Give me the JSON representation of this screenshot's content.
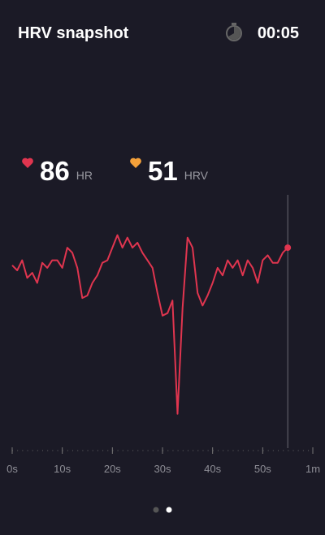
{
  "header": {
    "title": "HRV snapshot",
    "timer": "00:05"
  },
  "stats": [
    {
      "value": "86",
      "label": "HR",
      "color": "#e0354f"
    },
    {
      "value": "51",
      "label": "HRV",
      "color": "#f3a03a"
    }
  ],
  "chart_data": {
    "type": "line",
    "color": "#e0354f",
    "x": [
      0,
      1,
      2,
      3,
      4,
      5,
      6,
      7,
      8,
      9,
      10,
      11,
      12,
      13,
      14,
      15,
      16,
      17,
      18,
      19,
      20,
      21,
      22,
      23,
      24,
      25,
      26,
      27,
      28,
      29,
      30,
      31,
      32,
      33,
      34,
      35,
      36,
      37,
      38,
      39,
      40,
      41,
      42,
      43,
      44,
      45,
      46,
      47,
      48,
      49,
      50,
      51,
      52,
      53,
      54,
      55
    ],
    "values": [
      72,
      70,
      74,
      67,
      69,
      65,
      73,
      71,
      74,
      74,
      71,
      79,
      77,
      71,
      59,
      60,
      65,
      68,
      73,
      74,
      79,
      84,
      79,
      83,
      79,
      81,
      77,
      74,
      71,
      61,
      52,
      53,
      58,
      13,
      55,
      83,
      79,
      61,
      56,
      60,
      65,
      71,
      68,
      74,
      71,
      74,
      68,
      74,
      71,
      65,
      74,
      76,
      73,
      73,
      77,
      79
    ],
    "xlim": [
      0,
      60
    ],
    "ylim": [
      0,
      100
    ],
    "xticks": [
      {
        "value": 0,
        "label": "0s"
      },
      {
        "value": 10,
        "label": "10s"
      },
      {
        "value": 20,
        "label": "20s"
      },
      {
        "value": 30,
        "label": "30s"
      },
      {
        "value": 40,
        "label": "40s"
      },
      {
        "value": 50,
        "label": "50s"
      },
      {
        "value": 60,
        "label": "1m"
      }
    ]
  }
}
